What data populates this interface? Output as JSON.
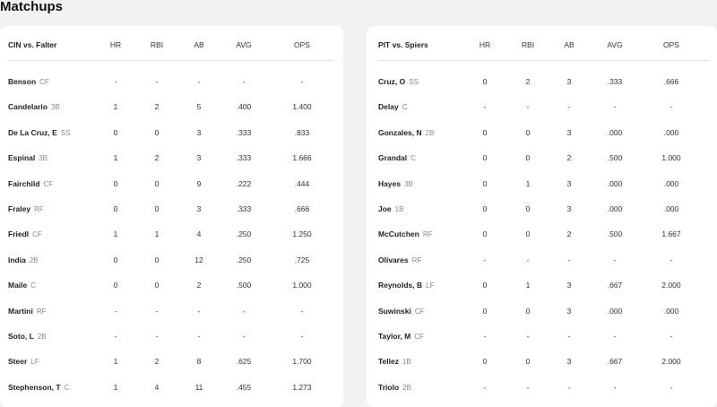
{
  "page": {
    "title": "Matchups"
  },
  "columns": [
    "HR",
    "RBI",
    "AB",
    "AVG",
    "OPS"
  ],
  "matchups": [
    {
      "header": "CIN vs. Falter",
      "rows": [
        {
          "name": "Benson",
          "pos": "CF",
          "hr": "-",
          "rbi": "-",
          "ab": "-",
          "avg": "-",
          "ops": "-"
        },
        {
          "name": "Candelario",
          "pos": "3B",
          "hr": "1",
          "rbi": "2",
          "ab": "5",
          "avg": ".400",
          "ops": "1.400"
        },
        {
          "name": "De La Cruz, E",
          "pos": "SS",
          "hr": "0",
          "rbi": "0",
          "ab": "3",
          "avg": ".333",
          "ops": ".833"
        },
        {
          "name": "Espinal",
          "pos": "3B",
          "hr": "1",
          "rbi": "2",
          "ab": "3",
          "avg": ".333",
          "ops": "1.666"
        },
        {
          "name": "Fairchild",
          "pos": "CF",
          "hr": "0",
          "rbi": "0",
          "ab": "9",
          "avg": ".222",
          "ops": ".444"
        },
        {
          "name": "Fraley",
          "pos": "RF",
          "hr": "0",
          "rbi": "0",
          "ab": "3",
          "avg": ".333",
          "ops": ".666"
        },
        {
          "name": "Friedl",
          "pos": "CF",
          "hr": "1",
          "rbi": "1",
          "ab": "4",
          "avg": ".250",
          "ops": "1.250"
        },
        {
          "name": "India",
          "pos": "2B",
          "hr": "0",
          "rbi": "0",
          "ab": "12",
          "avg": ".250",
          "ops": ".725"
        },
        {
          "name": "Maile",
          "pos": "C",
          "hr": "0",
          "rbi": "0",
          "ab": "2",
          "avg": ".500",
          "ops": "1.000"
        },
        {
          "name": "Martini",
          "pos": "RF",
          "hr": "-",
          "rbi": "-",
          "ab": "-",
          "avg": "-",
          "ops": "-"
        },
        {
          "name": "Soto, L",
          "pos": "2B",
          "hr": "-",
          "rbi": "-",
          "ab": "-",
          "avg": "-",
          "ops": "-"
        },
        {
          "name": "Steer",
          "pos": "LF",
          "hr": "1",
          "rbi": "2",
          "ab": "8",
          "avg": ".625",
          "ops": "1.700"
        },
        {
          "name": "Stephenson, T",
          "pos": "C",
          "hr": "1",
          "rbi": "4",
          "ab": "11",
          "avg": ".455",
          "ops": "1.273"
        }
      ]
    },
    {
      "header": "PIT vs. Spiers",
      "rows": [
        {
          "name": "Cruz, O",
          "pos": "SS",
          "hr": "0",
          "rbi": "2",
          "ab": "3",
          "avg": ".333",
          "ops": ".666"
        },
        {
          "name": "Delay",
          "pos": "C",
          "hr": "-",
          "rbi": "-",
          "ab": "-",
          "avg": "-",
          "ops": "-"
        },
        {
          "name": "Gonzales, N",
          "pos": "2B",
          "hr": "0",
          "rbi": "0",
          "ab": "3",
          "avg": ".000",
          "ops": ".000"
        },
        {
          "name": "Grandal",
          "pos": "C",
          "hr": "0",
          "rbi": "0",
          "ab": "2",
          "avg": ".500",
          "ops": "1.000"
        },
        {
          "name": "Hayes",
          "pos": "3B",
          "hr": "0",
          "rbi": "1",
          "ab": "3",
          "avg": ".000",
          "ops": ".000"
        },
        {
          "name": "Joe",
          "pos": "1B",
          "hr": "0",
          "rbi": "0",
          "ab": "3",
          "avg": ".000",
          "ops": ".000"
        },
        {
          "name": "McCutchen",
          "pos": "RF",
          "hr": "0",
          "rbi": "0",
          "ab": "2",
          "avg": ".500",
          "ops": "1.667"
        },
        {
          "name": "Olivares",
          "pos": "RF",
          "hr": "-",
          "rbi": "-",
          "ab": "-",
          "avg": "-",
          "ops": "-"
        },
        {
          "name": "Reynolds, B",
          "pos": "LF",
          "hr": "0",
          "rbi": "1",
          "ab": "3",
          "avg": ".667",
          "ops": "2.000"
        },
        {
          "name": "Suwinski",
          "pos": "CF",
          "hr": "0",
          "rbi": "0",
          "ab": "3",
          "avg": ".000",
          "ops": ".000"
        },
        {
          "name": "Taylor, M",
          "pos": "CF",
          "hr": "-",
          "rbi": "-",
          "ab": "-",
          "avg": "-",
          "ops": "-"
        },
        {
          "name": "Tellez",
          "pos": "1B",
          "hr": "0",
          "rbi": "0",
          "ab": "3",
          "avg": ".667",
          "ops": "2.000"
        },
        {
          "name": "Triolo",
          "pos": "2B",
          "hr": "-",
          "rbi": "-",
          "ab": "-",
          "avg": "-",
          "ops": "-"
        }
      ]
    }
  ]
}
